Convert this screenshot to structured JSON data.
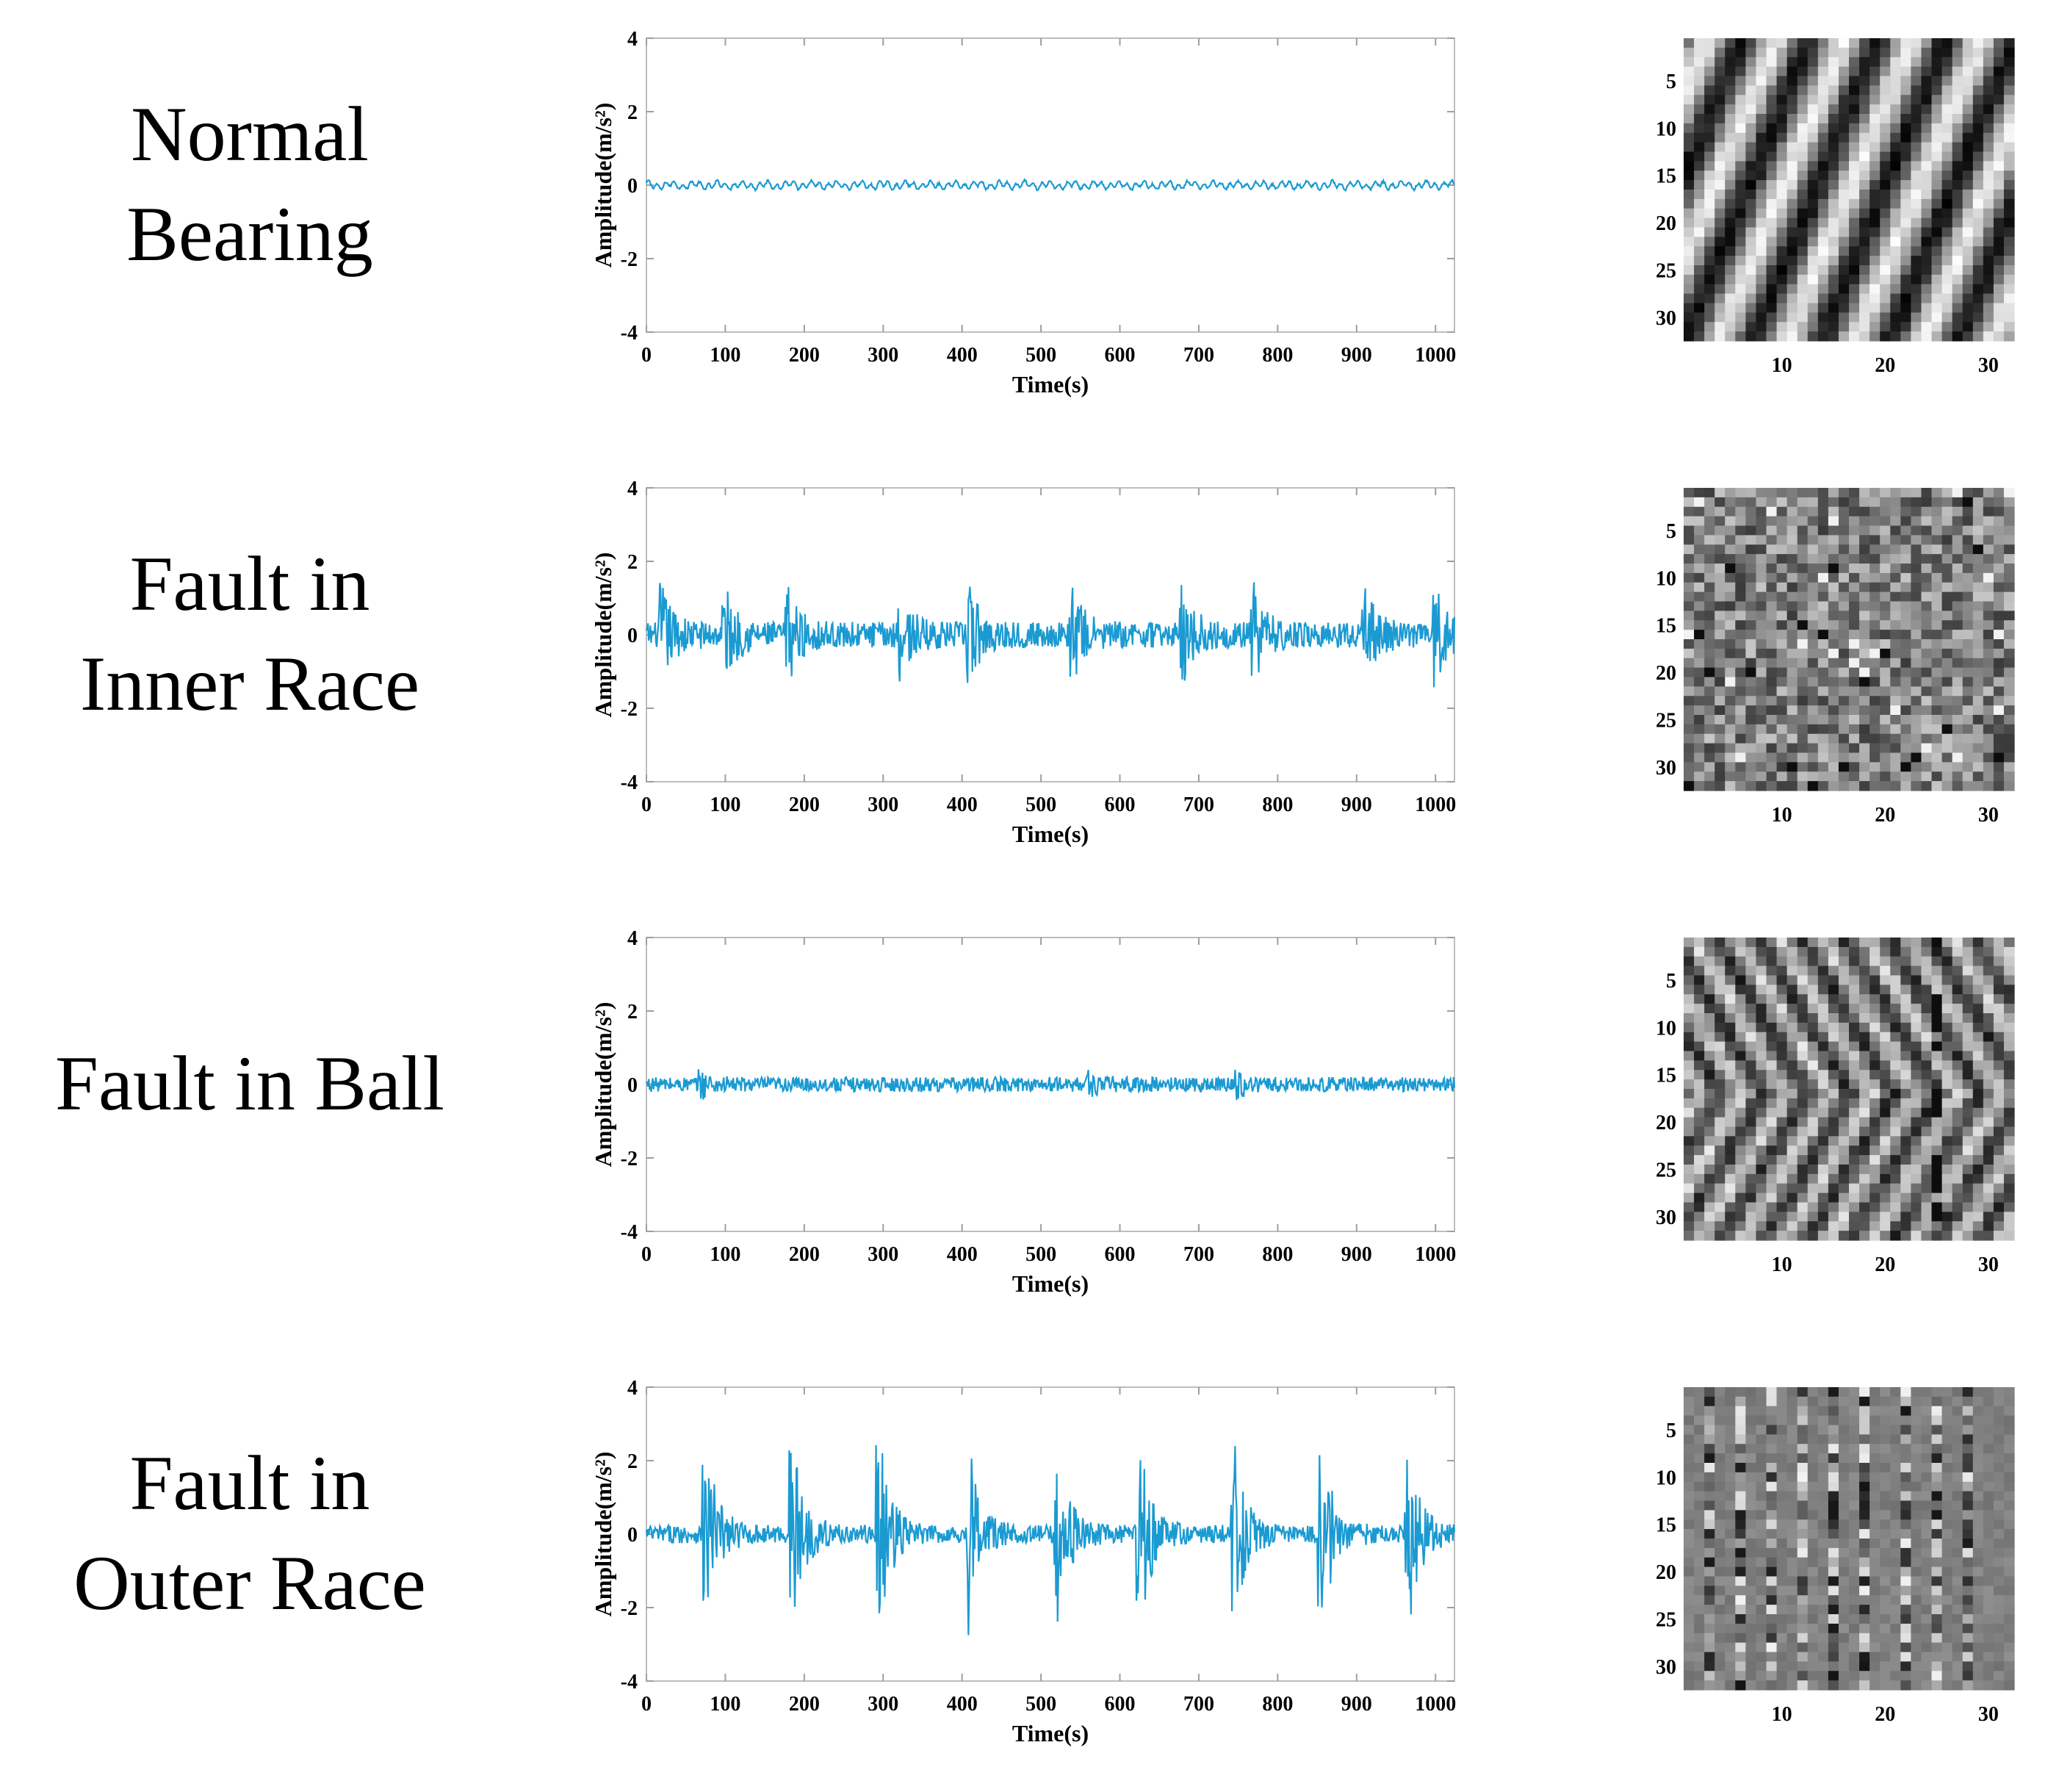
{
  "chart_data": [
    {
      "type": "line",
      "label_lines": [
        "Normal",
        "Bearing"
      ],
      "xlabel": "Time(s)",
      "ylabel": "Amplitude(m/s²)",
      "xlim": [
        0,
        1024
      ],
      "ylim": [
        -4,
        4
      ],
      "xticks": [
        0,
        100,
        200,
        300,
        400,
        500,
        600,
        700,
        800,
        900,
        1000
      ],
      "yticks": [
        4,
        2,
        0,
        -2,
        -4
      ],
      "series": [
        {
          "name": "Normal Bearing",
          "color": "#1b9ad2",
          "amplitude": 0.15,
          "impulse_peak": 0,
          "impulse_centers": []
        }
      ],
      "heatmap": {
        "size": 32,
        "pattern": "diagonal",
        "xticks": [
          10,
          20,
          30
        ],
        "yticks": [
          5,
          10,
          15,
          20,
          25,
          30
        ]
      }
    },
    {
      "type": "line",
      "label_lines": [
        "Fault in",
        "Inner Race"
      ],
      "xlabel": "Time(s)",
      "ylabel": "Amplitude(m/s²)",
      "xlim": [
        0,
        1024
      ],
      "ylim": [
        -4,
        4
      ],
      "xticks": [
        0,
        100,
        200,
        300,
        400,
        500,
        600,
        700,
        800,
        900,
        1000
      ],
      "yticks": [
        4,
        2,
        0,
        -2,
        -4
      ],
      "series": [
        {
          "name": "Fault in Inner Race",
          "color": "#1b9ad2",
          "amplitude": 0.35,
          "impulse_peak": 1.1,
          "impulse_centers": [
            20,
            100,
            180,
            320,
            410,
            540,
            680,
            770,
            910,
            1000
          ]
        }
      ],
      "heatmap": {
        "size": 32,
        "pattern": "noise",
        "xticks": [
          10,
          20,
          30
        ],
        "yticks": [
          5,
          10,
          15,
          20,
          25,
          30
        ]
      }
    },
    {
      "type": "line",
      "label_lines": [
        "Fault in Ball"
      ],
      "xlabel": "Time(s)",
      "ylabel": "Amplitude(m/s²)",
      "xlim": [
        0,
        1024
      ],
      "ylim": [
        -4,
        4
      ],
      "xticks": [
        0,
        100,
        200,
        300,
        400,
        500,
        600,
        700,
        800,
        900,
        1000
      ],
      "yticks": [
        4,
        2,
        0,
        -2,
        -4
      ],
      "series": [
        {
          "name": "Fault in Ball",
          "color": "#1b9ad2",
          "amplitude": 0.2,
          "impulse_peak": 0.25,
          "impulse_centers": [
            70,
            560,
            750
          ]
        }
      ],
      "heatmap": {
        "size": 32,
        "pattern": "chevron",
        "xticks": [
          10,
          20,
          30
        ],
        "yticks": [
          5,
          10,
          15,
          20,
          25,
          30
        ]
      }
    },
    {
      "type": "line",
      "label_lines": [
        "Fault in",
        "Outer Race"
      ],
      "xlabel": "Time(s)",
      "ylabel": "Amplitude(m/s²)",
      "xlim": [
        0,
        1024
      ],
      "ylim": [
        -4,
        4
      ],
      "xticks": [
        0,
        100,
        200,
        300,
        400,
        500,
        600,
        700,
        800,
        900,
        1000
      ],
      "yticks": [
        4,
        2,
        0,
        -2,
        -4
      ],
      "series": [
        {
          "name": "Fault in Outer Race",
          "color": "#1b9ad2",
          "amplitude": 0.25,
          "impulse_peak": 2.6,
          "impulse_centers": [
            75,
            185,
            295,
            410,
            520,
            625,
            745,
            855,
            965
          ]
        }
      ],
      "heatmap": {
        "size": 32,
        "pattern": "columns",
        "xticks": [
          10,
          20,
          30
        ],
        "yticks": [
          5,
          10,
          15,
          20,
          25,
          30
        ]
      }
    }
  ]
}
